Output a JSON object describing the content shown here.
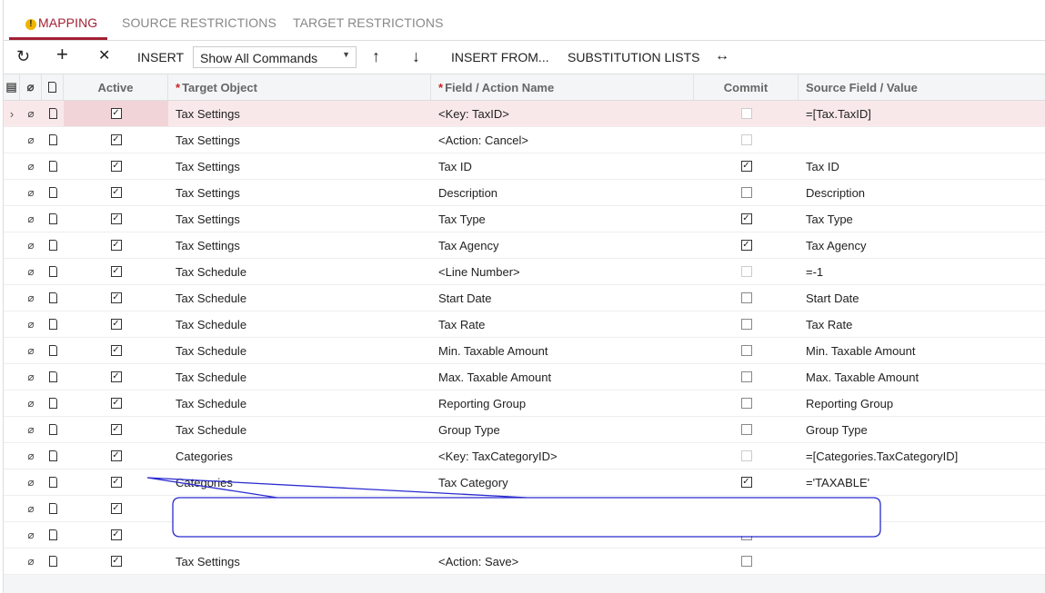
{
  "tabs": [
    {
      "label": "MAPPING",
      "warning": "!"
    },
    {
      "label": "SOURCE RESTRICTIONS"
    },
    {
      "label": "TARGET RESTRICTIONS"
    }
  ],
  "toolbar": {
    "refresh": "↻",
    "add": "+",
    "delete": "✕",
    "insert": "INSERT",
    "command_filter": "Show All Commands",
    "up": "↑",
    "down": "↓",
    "insert_from": "INSERT FROM...",
    "substitution_lists": "SUBSTITUTION LISTS",
    "fit": "↔"
  },
  "columns": {
    "active": "Active",
    "target": "Target Object",
    "field": "Field / Action Name",
    "commit": "Commit",
    "source": "Source Field / Value",
    "required": "*"
  },
  "rows": [
    {
      "target": "Tax Settings",
      "field": "<Key: TaxID>",
      "commit": "disabled",
      "source": "=[Tax.TaxID]"
    },
    {
      "target": "Tax Settings",
      "field": "<Action: Cancel>",
      "commit": "disabled",
      "source": ""
    },
    {
      "target": "Tax Settings",
      "field": "Tax ID",
      "commit": "checked",
      "source": "Tax ID"
    },
    {
      "target": "Tax Settings",
      "field": "Description",
      "commit": "unchecked",
      "source": "Description"
    },
    {
      "target": "Tax Settings",
      "field": "Tax Type",
      "commit": "checked",
      "source": "Tax Type"
    },
    {
      "target": "Tax Settings",
      "field": "Tax Agency",
      "commit": "checked",
      "source": "Tax Agency"
    },
    {
      "target": "Tax Schedule",
      "field": "<Line Number>",
      "commit": "disabled",
      "source": "=-1"
    },
    {
      "target": "Tax Schedule",
      "field": "Start Date",
      "commit": "unchecked",
      "source": "Start Date"
    },
    {
      "target": "Tax Schedule",
      "field": "Tax Rate",
      "commit": "unchecked",
      "source": "Tax Rate"
    },
    {
      "target": "Tax Schedule",
      "field": "Min. Taxable Amount",
      "commit": "unchecked",
      "source": "Min. Taxable Amount"
    },
    {
      "target": "Tax Schedule",
      "field": "Max. Taxable Amount",
      "commit": "unchecked",
      "source": "Max. Taxable Amount"
    },
    {
      "target": "Tax Schedule",
      "field": "Reporting Group",
      "commit": "unchecked",
      "source": "Reporting Group"
    },
    {
      "target": "Tax Schedule",
      "field": "Group Type",
      "commit": "unchecked",
      "source": "Group Type"
    },
    {
      "target": "Categories",
      "field": "<Key: TaxCategoryID>",
      "commit": "disabled",
      "source": "=[Categories.TaxCategoryID]"
    },
    {
      "target": "Categories",
      "field": "Tax Category",
      "commit": "checked",
      "source": "='TAXABLE'"
    },
    {
      "target": "",
      "field": "",
      "commit": "unchecked",
      "source": ""
    },
    {
      "target": "",
      "field": "",
      "commit": "unchecked",
      "source": ""
    },
    {
      "target": "Tax Settings",
      "field": "<Action: Save>",
      "commit": "unchecked",
      "source": ""
    }
  ]
}
